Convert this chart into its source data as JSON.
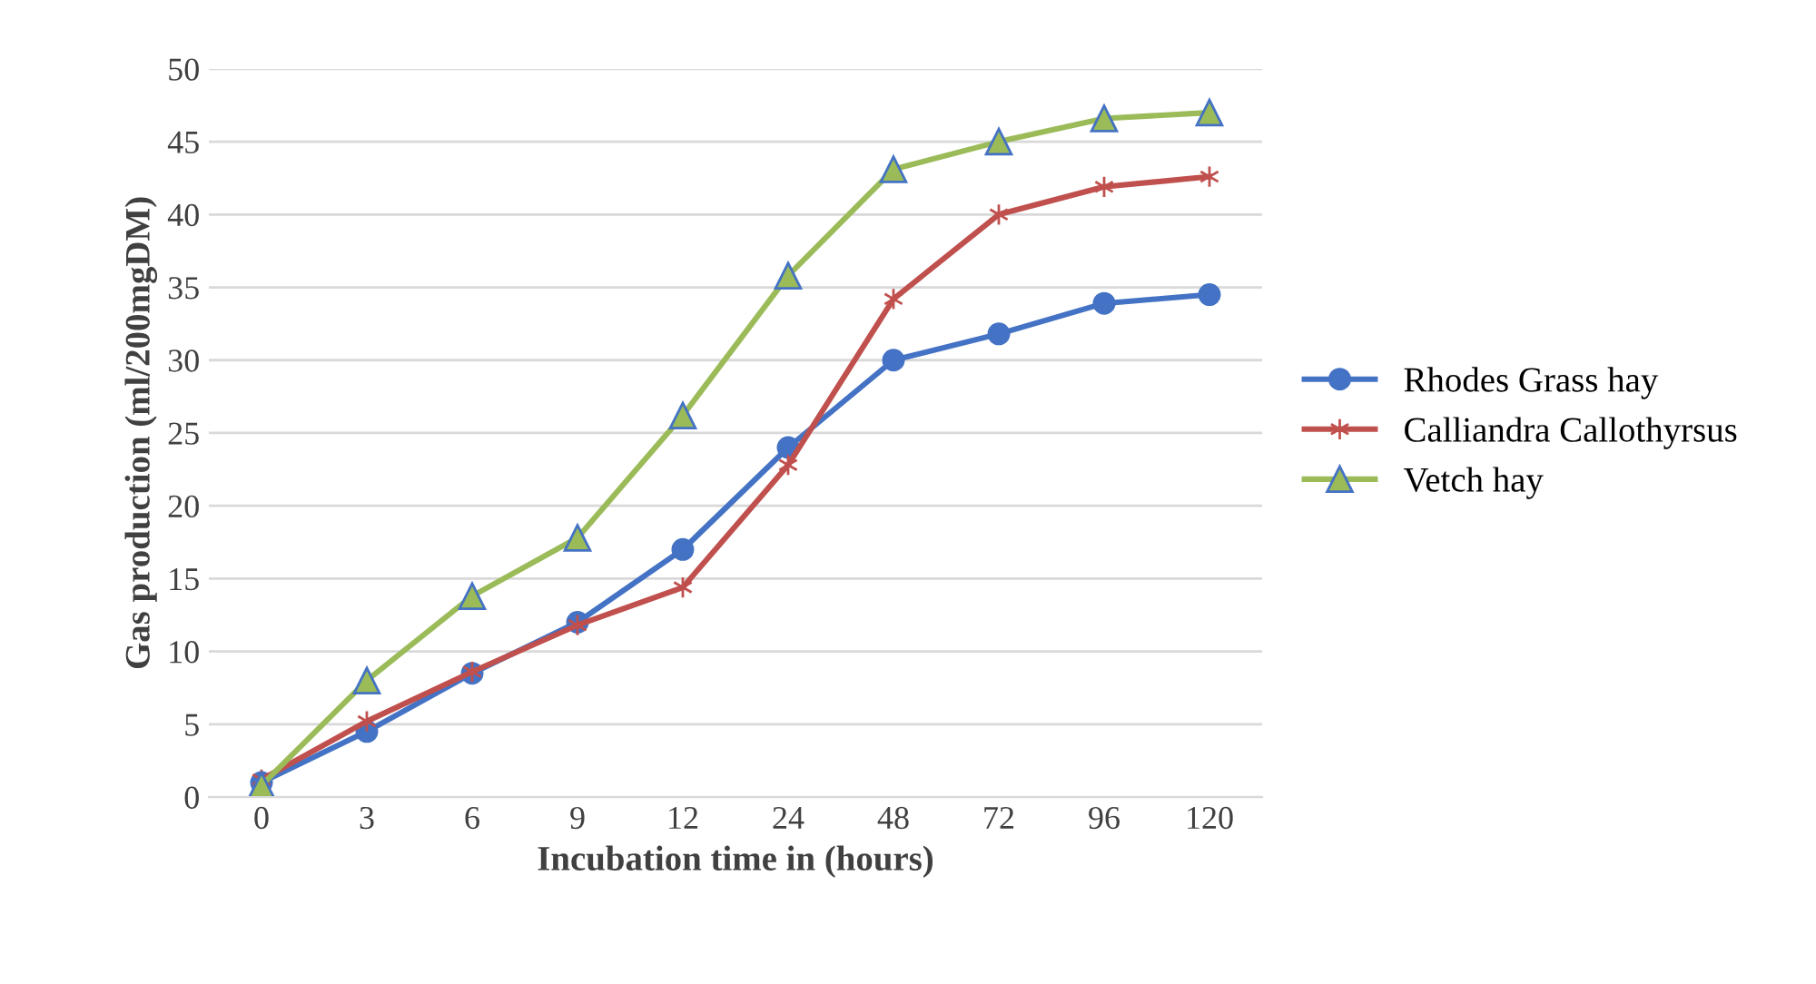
{
  "chart_data": {
    "type": "line",
    "xlabel": "Incubation time in (hours)",
    "ylabel": "Gas production (ml/200mgDM)",
    "categories": [
      "0",
      "3",
      "6",
      "9",
      "12",
      "24",
      "48",
      "72",
      "96",
      "120"
    ],
    "ylim": [
      0,
      50
    ],
    "yticks": [
      0,
      5,
      10,
      15,
      20,
      25,
      30,
      35,
      40,
      45,
      50
    ],
    "grid": "y",
    "legend": "right",
    "series": [
      {
        "name": "Rhodes Grass hay",
        "color": "#4472c4",
        "marker": "circle",
        "values": [
          1,
          4.5,
          8.5,
          12,
          17,
          24,
          30,
          31.8,
          33.9,
          34.5
        ]
      },
      {
        "name": "Calliandra Callothyrsus",
        "color": "#c0504d",
        "marker": "cross",
        "values": [
          1.2,
          5.2,
          8.6,
          11.8,
          14.4,
          22.8,
          34.2,
          40,
          41.9,
          42.6
        ]
      },
      {
        "name": "Vetch hay",
        "color": "#9bbb59",
        "marker": "triangle",
        "values": [
          0.8,
          8,
          13.8,
          17.8,
          26.2,
          35.8,
          43.1,
          45,
          46.6,
          47
        ]
      }
    ]
  }
}
